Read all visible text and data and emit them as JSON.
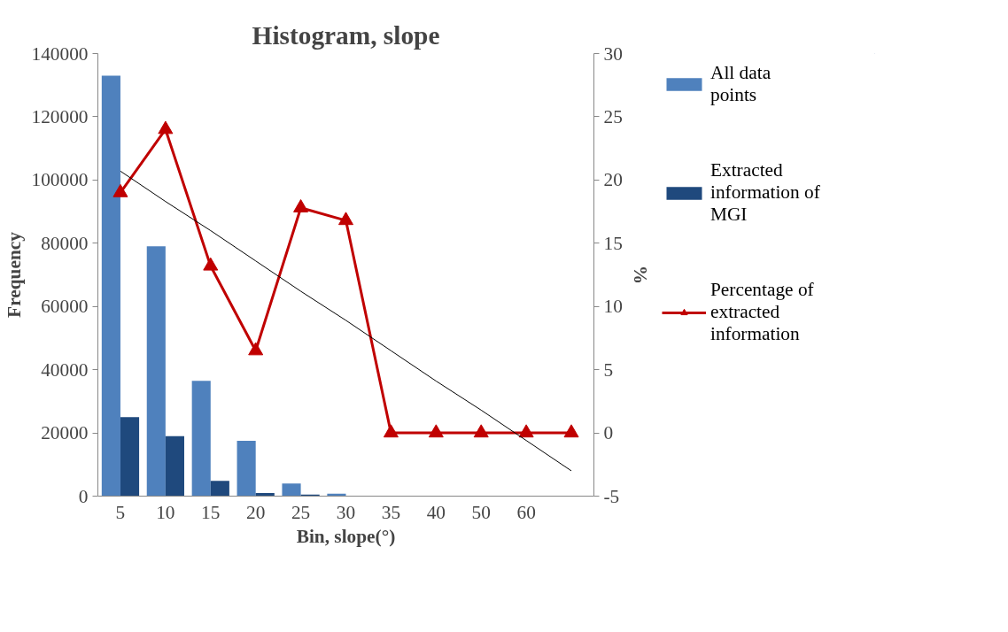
{
  "chart_data": {
    "type": "bar",
    "title": "Histogram, slope",
    "xlabel": "Bin, slope(°)",
    "ylabel": "Frequency",
    "y2label": "%",
    "categories": [
      "5",
      "10",
      "15",
      "20",
      "25",
      "30",
      "35",
      "40",
      "50",
      "60",
      null
    ],
    "series": [
      {
        "name": "All data points",
        "color": "#4f81bd",
        "values": [
          133000,
          79000,
          36500,
          17500,
          4000,
          800,
          0,
          0,
          0,
          0,
          0
        ]
      },
      {
        "name": "Extracted information of MGI",
        "color": "#1f497d",
        "values": [
          25000,
          19000,
          4800,
          1000,
          500,
          100,
          0,
          0,
          0,
          0,
          0
        ]
      },
      {
        "name": "Percentage of extracted information",
        "type": "line",
        "axis": "y2",
        "color": "#c00000",
        "marker": "triangle",
        "values": [
          19,
          24,
          13.2,
          6.5,
          17.8,
          16.8,
          0,
          0,
          0,
          0,
          0
        ]
      },
      {
        "type": "line",
        "axis": "y2",
        "color": "#000000",
        "marker": "none",
        "values": [
          20.7,
          18.3,
          16.0,
          13.6,
          11.2,
          8.9,
          6.5,
          4.1,
          1.8,
          -0.6,
          -3.0
        ]
      }
    ],
    "ylim": [
      0,
      140000
    ],
    "yticks": [
      0,
      20000,
      40000,
      60000,
      80000,
      100000,
      120000,
      140000
    ],
    "y2lim": [
      -5,
      30
    ],
    "y2ticks": [
      -5,
      0,
      5,
      10,
      15,
      20,
      25,
      30
    ],
    "grid": false,
    "legend": "right"
  }
}
